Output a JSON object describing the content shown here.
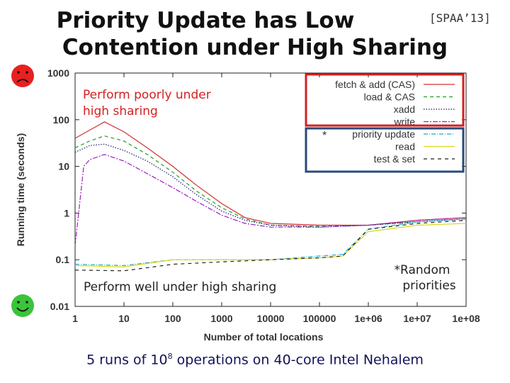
{
  "slide": {
    "title_line1": "Priority Update has Low",
    "title_line2": "Contention under High Sharing",
    "citation": "[SPAA’13]",
    "annotation_poor": "Perform poorly under high sharing",
    "annotation_poor_line1": "Perform poorly under",
    "annotation_poor_line2": "high sharing",
    "annotation_well": "Perform well under high sharing",
    "note_random_line1": "*Random",
    "note_random_line2": "priorities",
    "bottom_note_pre": "5 runs of 10",
    "bottom_note_exp": "8",
    "bottom_note_post": " operations on 40-core Intel Nehalem",
    "icons": {
      "sad": "sad-face-icon",
      "happy": "happy-face-icon"
    },
    "colors": {
      "sad_face": "#e82020",
      "happy_face": "#3ac43a",
      "highlight_red": "#d42020",
      "highlight_blue": "#2a4a7a",
      "annotation_text": "#d42020",
      "bottom_text": "#12125c"
    }
  },
  "chart_data": {
    "type": "line",
    "xlabel": "Number of total locations",
    "ylabel": "Running time (seconds)",
    "xscale": "log",
    "yscale": "log",
    "xlim": [
      1,
      100000000
    ],
    "ylim": [
      0.01,
      1000
    ],
    "xticks": [
      "1",
      "10",
      "100",
      "1000",
      "10000",
      "100000",
      "1e+06",
      "1e+07",
      "1e+08"
    ],
    "yticks": [
      "0.01",
      "0.1",
      "1",
      "10",
      "100",
      "1000"
    ],
    "legend_position": "top-right",
    "series": [
      {
        "name": "fetch & add (CAS)",
        "color": "#d03030",
        "dash": "",
        "points": [
          [
            1,
            40
          ],
          [
            2,
            60
          ],
          [
            4,
            90
          ],
          [
            10,
            55
          ],
          [
            30,
            25
          ],
          [
            100,
            10
          ],
          [
            300,
            4
          ],
          [
            1000,
            1.6
          ],
          [
            3000,
            0.8
          ],
          [
            10000,
            0.6
          ],
          [
            100000,
            0.55
          ],
          [
            1000000,
            0.55
          ],
          [
            10000000,
            0.7
          ],
          [
            100000000,
            0.8
          ]
        ]
      },
      {
        "name": "load & CAS",
        "color": "#20a020",
        "dash": "5,4",
        "points": [
          [
            1,
            25
          ],
          [
            2,
            35
          ],
          [
            4,
            45
          ],
          [
            10,
            35
          ],
          [
            30,
            18
          ],
          [
            100,
            7.5
          ],
          [
            300,
            3
          ],
          [
            1000,
            1.3
          ],
          [
            3000,
            0.75
          ],
          [
            10000,
            0.55
          ],
          [
            100000,
            0.52
          ],
          [
            1000000,
            0.55
          ],
          [
            10000000,
            0.65
          ],
          [
            100000000,
            0.75
          ]
        ]
      },
      {
        "name": "xadd",
        "color": "#1a1a7a",
        "dash": "1.5,2",
        "points": [
          [
            1,
            20
          ],
          [
            2,
            28
          ],
          [
            4,
            30
          ],
          [
            10,
            22
          ],
          [
            30,
            13
          ],
          [
            100,
            6
          ],
          [
            300,
            2.5
          ],
          [
            1000,
            1.1
          ],
          [
            3000,
            0.7
          ],
          [
            10000,
            0.55
          ],
          [
            100000,
            0.5
          ],
          [
            1000000,
            0.55
          ],
          [
            10000000,
            0.65
          ],
          [
            100000000,
            0.75
          ]
        ]
      },
      {
        "name": "write",
        "color": "#a020c0",
        "dash": "7,2,2,2",
        "points": [
          [
            1,
            0.2
          ],
          [
            1.5,
            10
          ],
          [
            2,
            14
          ],
          [
            4,
            18
          ],
          [
            10,
            13
          ],
          [
            30,
            7
          ],
          [
            100,
            3.5
          ],
          [
            300,
            1.8
          ],
          [
            1000,
            0.9
          ],
          [
            3000,
            0.6
          ],
          [
            10000,
            0.5
          ],
          [
            100000,
            0.5
          ],
          [
            1000000,
            0.55
          ],
          [
            10000000,
            0.7
          ],
          [
            100000000,
            0.8
          ]
        ]
      },
      {
        "name": "priority update",
        "color": "#20a8c8",
        "dash": "6,2,1,2",
        "points": [
          [
            1,
            0.08
          ],
          [
            10,
            0.075
          ],
          [
            100,
            0.1
          ],
          [
            1000,
            0.1
          ],
          [
            10000,
            0.1
          ],
          [
            100000,
            0.12
          ],
          [
            300000,
            0.13
          ],
          [
            1000000,
            0.45
          ],
          [
            10000000,
            0.65
          ],
          [
            100000000,
            0.75
          ]
        ]
      },
      {
        "name": "read",
        "color": "#d8d820",
        "dash": "",
        "points": [
          [
            1,
            0.075
          ],
          [
            10,
            0.07
          ],
          [
            100,
            0.1
          ],
          [
            1000,
            0.1
          ],
          [
            10000,
            0.1
          ],
          [
            100000,
            0.11
          ],
          [
            300000,
            0.12
          ],
          [
            1000000,
            0.4
          ],
          [
            10000000,
            0.55
          ],
          [
            100000000,
            0.6
          ]
        ]
      },
      {
        "name": "test & set",
        "color": "#222222",
        "dash": "5,5",
        "points": [
          [
            1,
            0.06
          ],
          [
            10,
            0.058
          ],
          [
            100,
            0.08
          ],
          [
            1000,
            0.09
          ],
          [
            10000,
            0.1
          ],
          [
            100000,
            0.11
          ],
          [
            300000,
            0.12
          ],
          [
            1000000,
            0.45
          ],
          [
            10000000,
            0.6
          ],
          [
            100000000,
            0.7
          ]
        ]
      }
    ]
  }
}
